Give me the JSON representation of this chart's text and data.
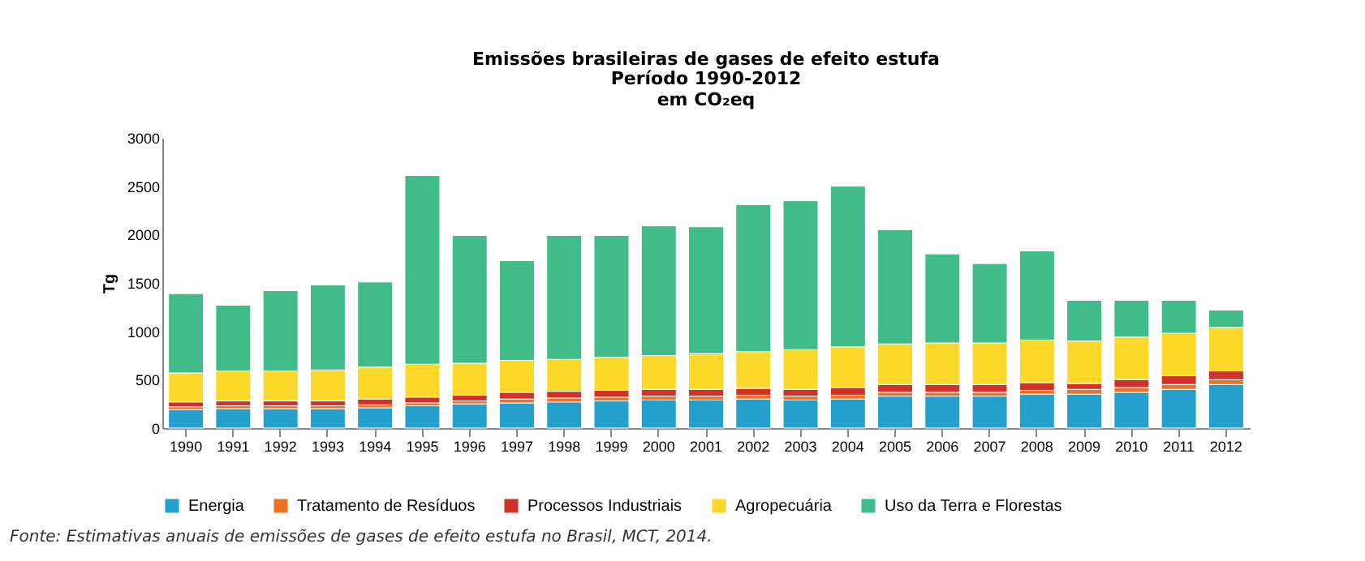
{
  "chart_data": {
    "type": "bar",
    "title": "Emissões brasileiras de gases de efeito estufa",
    "subtitle": "Período 1990-2012\nem CO₂eq",
    "ylabel": "Tg",
    "categories": [
      "1990",
      "1991",
      "1992",
      "1993",
      "1994",
      "1995",
      "1996",
      "1997",
      "1998",
      "1999",
      "2000",
      "2001",
      "2002",
      "2003",
      "2004",
      "2005",
      "2006",
      "2007",
      "2008",
      "2009",
      "2010",
      "2011",
      "2012"
    ],
    "stacked": true,
    "ylim": [
      0,
      3000
    ],
    "yticks": [
      0,
      500,
      1000,
      1500,
      2000,
      2500,
      3000
    ],
    "grid": false,
    "legend": "bottom",
    "series": [
      {
        "name": "Energia",
        "color": "#259fcb",
        "values": [
          190,
          200,
          200,
          200,
          210,
          230,
          250,
          260,
          270,
          280,
          290,
          290,
          300,
          290,
          300,
          330,
          330,
          330,
          350,
          350,
          370,
          400,
          450
        ]
      },
      {
        "name": "Tratamento de Resíduos",
        "color": "#ee7124",
        "values": [
          30,
          30,
          30,
          30,
          30,
          30,
          30,
          40,
          40,
          40,
          40,
          40,
          40,
          40,
          40,
          40,
          40,
          40,
          40,
          50,
          50,
          50,
          50
        ]
      },
      {
        "name": "Processos Industriais",
        "color": "#d0322a",
        "values": [
          50,
          50,
          50,
          50,
          60,
          60,
          60,
          70,
          70,
          70,
          70,
          70,
          70,
          70,
          80,
          80,
          80,
          80,
          80,
          60,
          80,
          90,
          90
        ]
      },
      {
        "name": "Agropecuária",
        "color": "#fcd82b",
        "values": [
          300,
          310,
          310,
          320,
          330,
          340,
          330,
          330,
          330,
          340,
          350,
          370,
          380,
          410,
          420,
          420,
          430,
          430,
          440,
          440,
          440,
          440,
          450
        ]
      },
      {
        "name": "Uso da Terra e Florestas",
        "color": "#41bb89",
        "values": [
          820,
          680,
          830,
          880,
          880,
          1950,
          1320,
          1030,
          1280,
          1260,
          1340,
          1310,
          1520,
          1540,
          1660,
          1180,
          920,
          820,
          920,
          420,
          380,
          340,
          180
        ]
      }
    ],
    "annotations": [
      "Fonte: Estimativas anuais de emissões de gases de efeito estufa no Brasil, MCT, 2014."
    ]
  }
}
